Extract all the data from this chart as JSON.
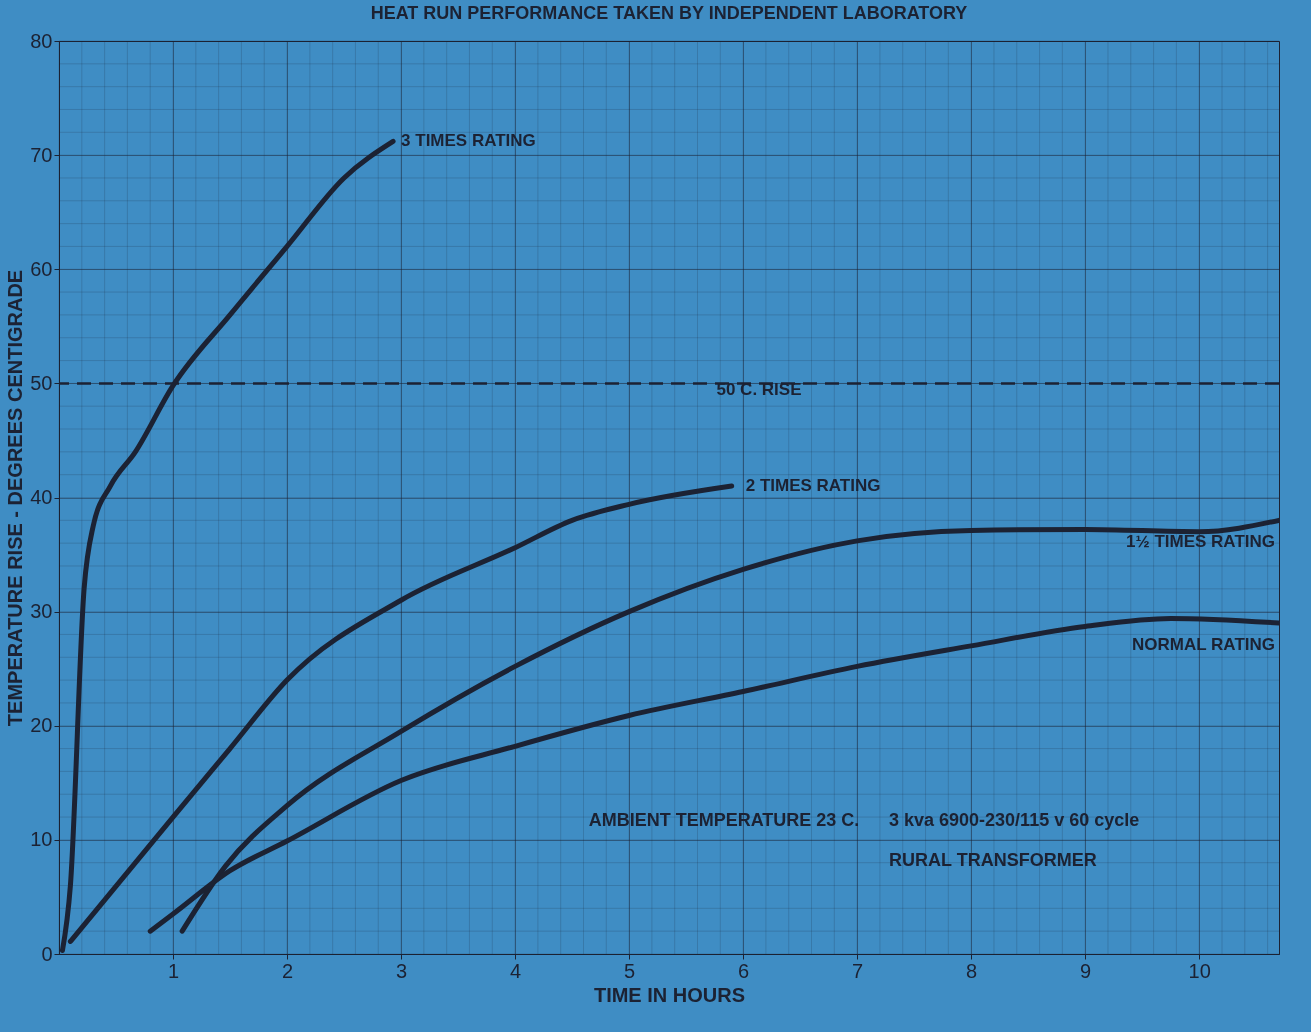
{
  "chart_data": {
    "type": "line",
    "title": "HEAT RUN PERFORMANCE TAKEN BY INDEPENDENT LABORATORY",
    "xlabel": "TIME IN HOURS",
    "ylabel": "TEMPERATURE RISE - DEGREES CENTIGRADE",
    "xlim": [
      0,
      10.7
    ],
    "xticks": [
      1,
      2,
      3,
      4,
      5,
      6,
      7,
      8,
      9,
      10
    ],
    "ylim": [
      0,
      80
    ],
    "yticks": [
      0,
      10,
      20,
      30,
      40,
      50,
      60,
      70,
      80
    ],
    "grid": true,
    "line_style": "solid",
    "series": [
      {
        "name": "3 TIMES RATING",
        "color": "#1c2233",
        "x": [
          0.03,
          0.1,
          0.22,
          0.3,
          0.45,
          0.67,
          1,
          1.5,
          2,
          2.5,
          2.93
        ],
        "values": [
          0.3,
          6,
          32,
          37.5,
          41,
          44,
          49.8,
          56,
          62,
          68,
          71.2
        ]
      },
      {
        "name": "2 TIMES RATING",
        "color": "#1c2233",
        "x": [
          0.1,
          1,
          1.5,
          2,
          3,
          4,
          4.5,
          5,
          5.9
        ],
        "values": [
          1.1,
          12,
          18,
          24,
          31,
          35.6,
          38,
          39.4,
          41
        ]
      },
      {
        "name": "1½ TIMES RATING",
        "color": "#1c2233",
        "x": [
          1.08,
          1.46,
          2,
          3,
          4,
          5,
          6,
          7,
          8,
          9,
          10,
          10.7
        ],
        "values": [
          2,
          7.7,
          13,
          19.5,
          25.2,
          30,
          33.7,
          36.2,
          37.1,
          37.2,
          37,
          38
        ]
      },
      {
        "name": "NORMAL RATING",
        "color": "#1c2233",
        "x": [
          0.8,
          1,
          1.5,
          2,
          3,
          4,
          5,
          6,
          7,
          8,
          9,
          9.75,
          10.7
        ],
        "values": [
          2,
          3.5,
          7.3,
          9.9,
          15.2,
          18.2,
          20.9,
          23,
          25.2,
          27,
          28.7,
          29.4,
          29
        ]
      }
    ],
    "ref_lines": [
      {
        "axis": "y",
        "value": 50,
        "label": "50 C. RISE",
        "color": "#1c2233",
        "line_style": "dashed"
      }
    ],
    "annotations": [
      "AMBIENT TEMPERATURE 23 C.",
      "3 kva 6900-230/115 v 60 cycle",
      "RURAL TRANSFORMER"
    ]
  }
}
